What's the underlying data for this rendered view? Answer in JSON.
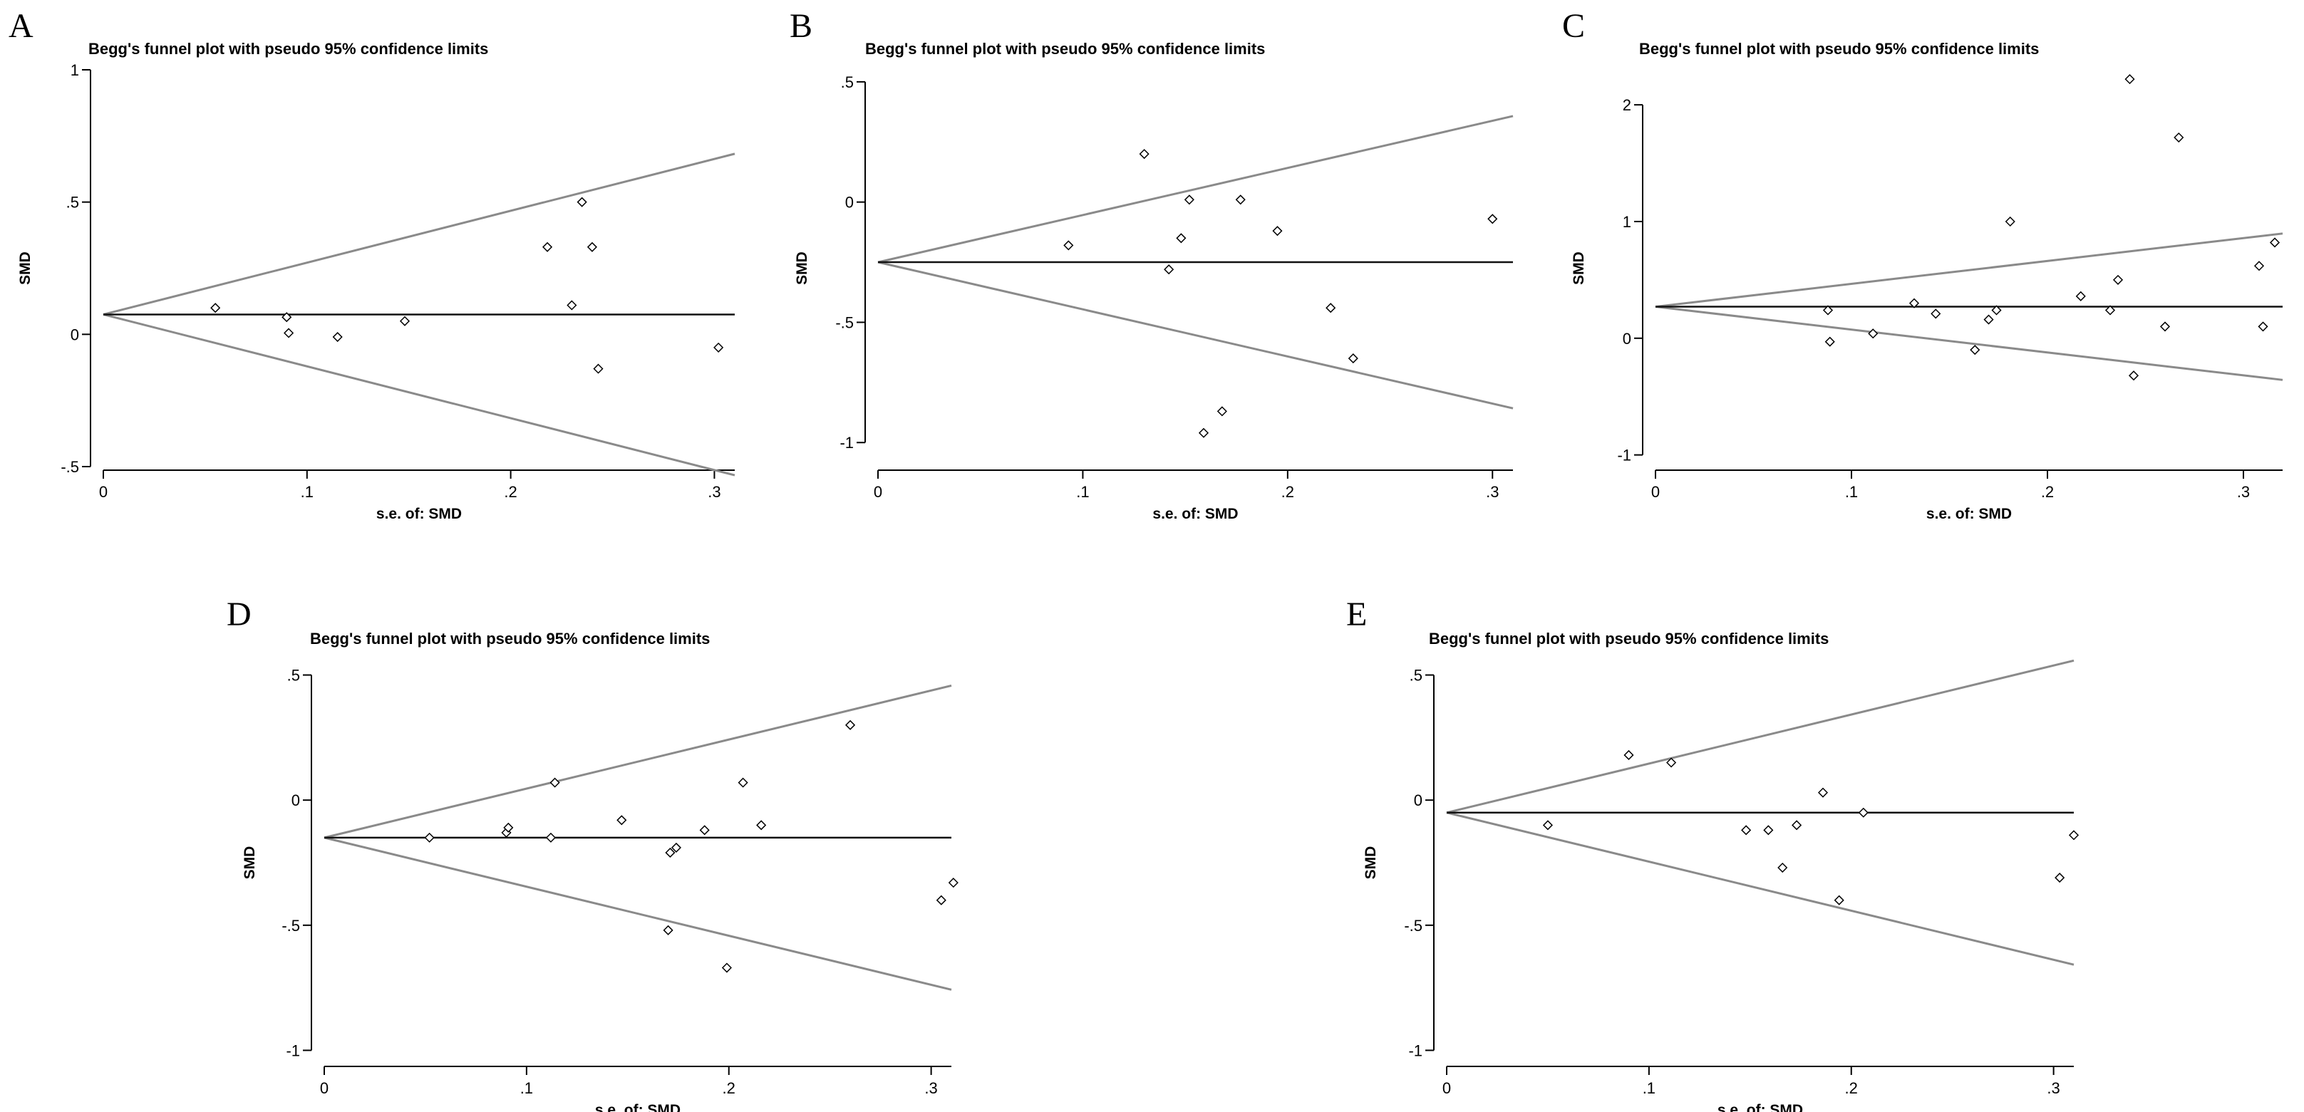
{
  "chart_data": [
    {
      "panel": "A",
      "type": "scatter",
      "title": "Begg's funnel plot with pseudo 95% confidence limits",
      "xlabel": "s.e. of: SMD",
      "ylabel": "SMD",
      "xlim": [
        0,
        0.31
      ],
      "ylim": [
        -0.5,
        1
      ],
      "xticks": [
        0,
        0.1,
        0.2,
        0.3
      ],
      "xtick_labels": [
        "0",
        ".1",
        ".2",
        ".3"
      ],
      "yticks": [
        -0.5,
        0,
        0.5,
        1
      ],
      "ytick_labels": [
        "-.5",
        "0",
        ".5",
        "1"
      ],
      "pooled_estimate": 0.075,
      "ci_multiplier": 1.96,
      "points": [
        [
          0.055,
          0.1
        ],
        [
          0.09,
          0.065
        ],
        [
          0.091,
          0.005
        ],
        [
          0.115,
          -0.01
        ],
        [
          0.148,
          0.05
        ],
        [
          0.218,
          0.33
        ],
        [
          0.23,
          0.11
        ],
        [
          0.235,
          0.5
        ],
        [
          0.24,
          0.33
        ],
        [
          0.243,
          -0.13
        ],
        [
          0.302,
          -0.05
        ]
      ]
    },
    {
      "panel": "B",
      "type": "scatter",
      "title": "Begg's funnel plot with pseudo 95% confidence limits",
      "xlabel": "s.e. of: SMD",
      "ylabel": "SMD",
      "xlim": [
        0,
        0.31
      ],
      "ylim": [
        -1.1,
        0.55
      ],
      "xticks": [
        0,
        0.1,
        0.2,
        0.3
      ],
      "xtick_labels": [
        "0",
        ".1",
        ".2",
        ".3"
      ],
      "yticks": [
        -1,
        -0.5,
        0,
        0.5
      ],
      "ytick_labels": [
        "-1",
        "-.5",
        "0",
        ".5"
      ],
      "pooled_estimate": -0.25,
      "ci_multiplier": 1.96,
      "points": [
        [
          0.093,
          -0.18
        ],
        [
          0.13,
          0.2
        ],
        [
          0.142,
          -0.28
        ],
        [
          0.148,
          -0.15
        ],
        [
          0.152,
          0.01
        ],
        [
          0.159,
          -0.96
        ],
        [
          0.168,
          -0.87
        ],
        [
          0.177,
          0.01
        ],
        [
          0.195,
          -0.12
        ],
        [
          0.221,
          -0.44
        ],
        [
          0.232,
          -0.65
        ],
        [
          0.3,
          -0.07
        ]
      ]
    },
    {
      "panel": "C",
      "type": "scatter",
      "title": "Begg's funnel plot with pseudo 95% confidence limits",
      "xlabel": "s.e. of: SMD",
      "ylabel": "SMD",
      "xlim": [
        0,
        0.32
      ],
      "ylim": [
        -1.1,
        2.3
      ],
      "xticks": [
        0,
        0.1,
        0.2,
        0.3
      ],
      "xtick_labels": [
        "0",
        ".1",
        ".2",
        ".3"
      ],
      "yticks": [
        -1,
        0,
        1,
        2
      ],
      "ytick_labels": [
        "-1",
        "0",
        "1",
        "2"
      ],
      "pooled_estimate": 0.27,
      "ci_multiplier": 1.96,
      "points": [
        [
          0.088,
          0.24
        ],
        [
          0.089,
          -0.03
        ],
        [
          0.111,
          0.04
        ],
        [
          0.132,
          0.3
        ],
        [
          0.143,
          0.21
        ],
        [
          0.163,
          -0.1
        ],
        [
          0.17,
          0.16
        ],
        [
          0.174,
          0.24
        ],
        [
          0.181,
          1.0
        ],
        [
          0.217,
          0.36
        ],
        [
          0.232,
          0.24
        ],
        [
          0.236,
          0.5
        ],
        [
          0.242,
          2.22
        ],
        [
          0.244,
          -0.32
        ],
        [
          0.26,
          0.1
        ],
        [
          0.267,
          1.72
        ],
        [
          0.308,
          0.62
        ],
        [
          0.31,
          0.1
        ],
        [
          0.316,
          0.82
        ]
      ]
    },
    {
      "panel": "D",
      "type": "scatter",
      "title": "Begg's funnel plot with pseudo 95% confidence limits",
      "xlabel": "s.e. of: SMD",
      "ylabel": "SMD",
      "xlim": [
        0,
        0.31
      ],
      "ylim": [
        -1.05,
        0.55
      ],
      "xticks": [
        0,
        0.1,
        0.2,
        0.3
      ],
      "xtick_labels": [
        "0",
        ".1",
        ".2",
        ".3"
      ],
      "yticks": [
        -1,
        -0.5,
        0,
        0.5
      ],
      "ytick_labels": [
        "-1",
        "-.5",
        "0",
        ".5"
      ],
      "pooled_estimate": -0.15,
      "ci_multiplier": 1.96,
      "points": [
        [
          0.052,
          -0.15
        ],
        [
          0.09,
          -0.13
        ],
        [
          0.091,
          -0.11
        ],
        [
          0.112,
          -0.15
        ],
        [
          0.114,
          0.07
        ],
        [
          0.147,
          -0.08
        ],
        [
          0.17,
          -0.52
        ],
        [
          0.171,
          -0.21
        ],
        [
          0.174,
          -0.19
        ],
        [
          0.188,
          -0.12
        ],
        [
          0.199,
          -0.67
        ],
        [
          0.207,
          0.07
        ],
        [
          0.216,
          -0.1
        ],
        [
          0.26,
          0.3
        ],
        [
          0.305,
          -0.4
        ],
        [
          0.311,
          -0.33
        ]
      ]
    },
    {
      "panel": "E",
      "type": "scatter",
      "title": "Begg's funnel plot with pseudo 95% confidence limits",
      "xlabel": "s.e. of: SMD",
      "ylabel": "SMD",
      "xlim": [
        0,
        0.31
      ],
      "ylim": [
        -1.05,
        0.55
      ],
      "xticks": [
        0,
        0.1,
        0.2,
        0.3
      ],
      "xtick_labels": [
        "0",
        ".1",
        ".2",
        ".3"
      ],
      "yticks": [
        -1,
        -0.5,
        0,
        0.5
      ],
      "ytick_labels": [
        "-1",
        "-.5",
        "0",
        ".5"
      ],
      "pooled_estimate": -0.05,
      "ci_multiplier": 1.96,
      "points": [
        [
          0.05,
          -0.1
        ],
        [
          0.09,
          0.18
        ],
        [
          0.111,
          0.15
        ],
        [
          0.148,
          -0.12
        ],
        [
          0.159,
          -0.12
        ],
        [
          0.166,
          -0.27
        ],
        [
          0.173,
          -0.1
        ],
        [
          0.186,
          0.03
        ],
        [
          0.194,
          -0.4
        ],
        [
          0.206,
          -0.05
        ],
        [
          0.303,
          -0.31
        ],
        [
          0.31,
          -0.14
        ]
      ]
    }
  ]
}
